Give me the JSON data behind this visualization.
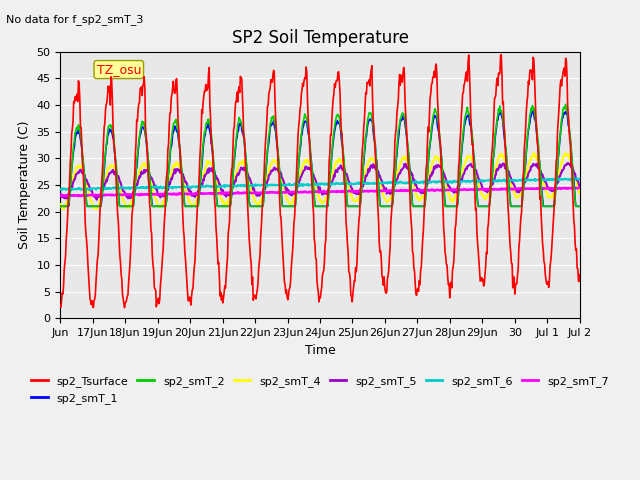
{
  "title": "SP2 Soil Temperature",
  "subtitle": "No data for f_sp2_smT_3",
  "ylabel": "Soil Temperature (C)",
  "xlabel": "Time",
  "tz_label": "TZ_osu",
  "ylim": [
    0,
    50
  ],
  "background_color": "#e8e8e8",
  "grid_color": "#ffffff",
  "series": {
    "sp2_Tsurface": {
      "color": "#ff0000",
      "lw": 1.2
    },
    "sp2_smT_1": {
      "color": "#0000ff",
      "lw": 1.2
    },
    "sp2_smT_2": {
      "color": "#00cc00",
      "lw": 1.2
    },
    "sp2_smT_4": {
      "color": "#ffff00",
      "lw": 1.5
    },
    "sp2_smT_5": {
      "color": "#9900cc",
      "lw": 1.5
    },
    "sp2_smT_6": {
      "color": "#00cccc",
      "lw": 1.5
    },
    "sp2_smT_7": {
      "color": "#ff00ff",
      "lw": 1.8
    }
  },
  "xtick_positions": [
    0,
    1,
    2,
    3,
    4,
    5,
    6,
    7,
    8,
    9,
    10,
    11,
    12,
    13,
    14,
    15,
    16
  ],
  "xtick_labels": [
    "Jun",
    "17Jun",
    "18Jun",
    "19Jun",
    "20Jun",
    "21Jun",
    "22Jun",
    "23Jun",
    "24Jun",
    "25Jun",
    "26Jun",
    "27Jun",
    "28Jun",
    "29Jun",
    "30",
    "Jul 1",
    "Jul 2"
  ],
  "legend_items": [
    {
      "label": "sp2_Tsurface",
      "color": "#ff0000"
    },
    {
      "label": "sp2_smT_1",
      "color": "#0000ff"
    },
    {
      "label": "sp2_smT_2",
      "color": "#00cc00"
    },
    {
      "label": "sp2_smT_4",
      "color": "#ffff00"
    },
    {
      "label": "sp2_smT_5",
      "color": "#9900cc"
    },
    {
      "label": "sp2_smT_6",
      "color": "#00cccc"
    },
    {
      "label": "sp2_smT_7",
      "color": "#ff00ff"
    }
  ]
}
